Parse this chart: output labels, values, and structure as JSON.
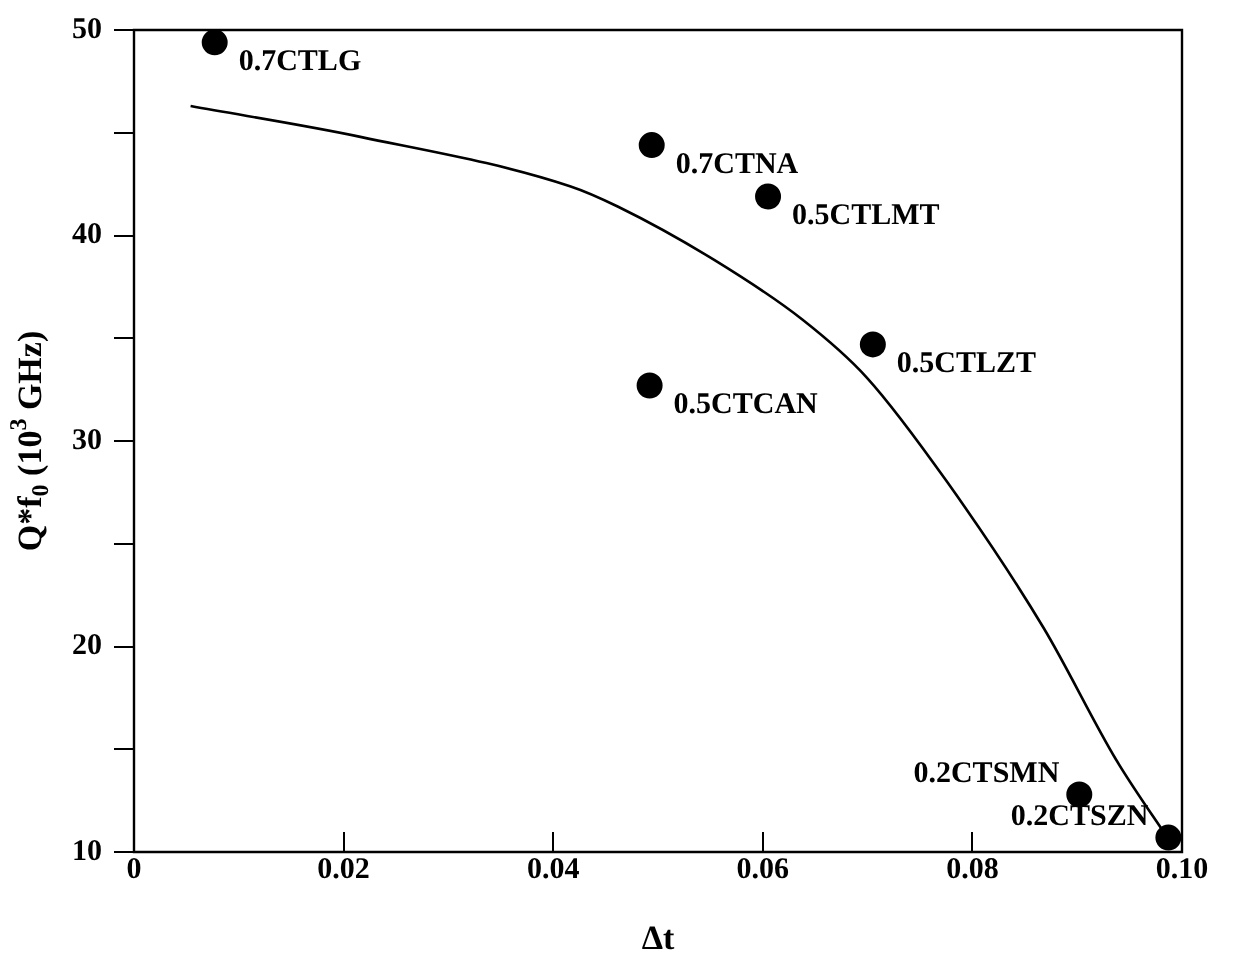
{
  "chart_data": {
    "type": "scatter",
    "xlabel": "Δt",
    "ylabel": "Q*f$_{0}$ (10$^{3}$ GHz)",
    "xlim": [
      0,
      0.1
    ],
    "xticks": [
      {
        "value": 0,
        "label": "0"
      },
      0.02,
      0.04,
      0.06,
      0.08,
      {
        "value": 0.1,
        "label": "0.10"
      }
    ],
    "ylim": [
      10,
      50
    ],
    "yticks": [
      10,
      {
        "value": 15,
        "label": null
      },
      20,
      {
        "value": 25,
        "label": null
      },
      30,
      {
        "value": 35,
        "label": null
      },
      40,
      {
        "value": 45,
        "label": null
      },
      50
    ],
    "grid": false,
    "legend": false,
    "marker": "circle",
    "series": [
      {
        "color": "#000000",
        "x": [
          0.0077,
          0.0494,
          0.0605,
          0.0705,
          0.0492,
          0.0902,
          0.0987
        ],
        "values": [
          49.4,
          44.4,
          41.9,
          34.7,
          32.7,
          12.8,
          10.7
        ]
      },
      {
        "type": "line",
        "color": "#000000",
        "marker": "none",
        "line_style": "solid",
        "x": [
          0.0054,
          0.0216,
          0.0416,
          0.0462,
          0.0554,
          0.0638,
          0.0699,
          0.0776,
          0.0868,
          0.0937,
          0.099
        ],
        "values": [
          46.3,
          44.8,
          42.4,
          41.4,
          38.8,
          35.9,
          33.1,
          28.0,
          20.9,
          14.5,
          10.4
        ]
      }
    ],
    "annotations": [
      {
        "text": "0.7CTLG",
        "x": 0.0077,
        "y": 49.4
      },
      {
        "text": "0.7CTNA",
        "x": 0.0494,
        "y": 44.4
      },
      {
        "text": "0.5CTLMT",
        "x": 0.0605,
        "y": 41.9
      },
      {
        "text": "0.5CTLZT",
        "x": 0.0705,
        "y": 34.7
      },
      {
        "text": "0.5CTCAN",
        "x": 0.0492,
        "y": 32.7
      },
      {
        "text": "0.2CTSMN",
        "x": 0.0902,
        "y": 12.8
      },
      {
        "text": "0.2CTSZN",
        "x": 0.0987,
        "y": 10.7
      }
    ]
  }
}
